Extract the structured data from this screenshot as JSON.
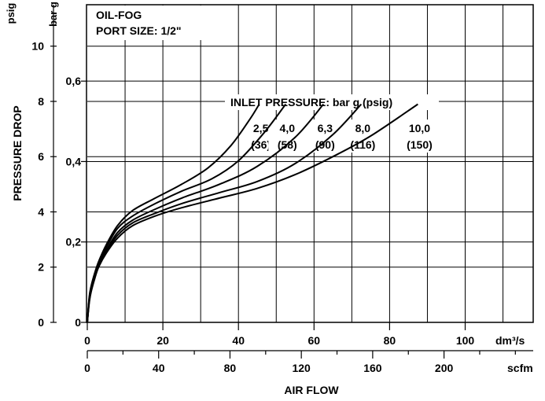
{
  "chart_data": {
    "type": "line",
    "title_lines": [
      "OIL-FOG",
      "PORT SIZE: 1/2\""
    ],
    "ylabel": "PRESSURE DROP",
    "xlabel": "AIR FLOW",
    "y_axes": [
      {
        "unit": "psig",
        "ticks": [
          "0",
          "2",
          "4",
          "6",
          "8",
          "10"
        ],
        "range": [
          0,
          11.5
        ]
      },
      {
        "unit": "bar g",
        "ticks": [
          "0",
          "0,2",
          "0,4",
          "0,6"
        ],
        "range": [
          0,
          0.79
        ]
      }
    ],
    "x_axes": [
      {
        "unit": "dm³/s",
        "ticks": [
          "0",
          "20",
          "40",
          "60",
          "80",
          "100"
        ],
        "range": [
          0,
          118
        ]
      },
      {
        "unit": "scfm",
        "ticks": [
          "0",
          "40",
          "80",
          "120",
          "160",
          "200"
        ],
        "range": [
          0,
          250
        ]
      }
    ],
    "legend_title": "INLET PRESSURE: bar g (psig)",
    "grid": true,
    "series": [
      {
        "name": "2,5 (36)",
        "label_top": "2,5",
        "label_bottom": "(36)",
        "x": [
          0,
          0.5,
          1,
          2,
          3,
          5,
          8,
          12,
          18,
          25,
          32,
          38,
          43,
          45.5
        ],
        "y": [
          0,
          0.9,
          1.3,
          1.8,
          2.2,
          2.8,
          3.5,
          4.05,
          4.5,
          5.0,
          5.6,
          6.4,
          7.35,
          7.9
        ]
      },
      {
        "name": "4,0 (58)",
        "label_top": "4,0",
        "label_bottom": "(58)",
        "x": [
          0,
          0.5,
          1,
          2,
          3,
          5,
          8,
          12,
          18,
          25,
          33,
          40,
          47,
          52.5
        ],
        "y": [
          0,
          0.85,
          1.25,
          1.75,
          2.15,
          2.7,
          3.4,
          3.85,
          4.3,
          4.75,
          5.2,
          5.85,
          6.9,
          7.9
        ]
      },
      {
        "name": "6,3 (90)",
        "label_top": "6,3",
        "label_bottom": "(90)",
        "x": [
          0,
          0.5,
          1,
          2,
          3,
          5,
          8,
          12,
          18,
          25,
          35,
          45,
          55,
          62.5
        ],
        "y": [
          0,
          0.8,
          1.2,
          1.7,
          2.1,
          2.6,
          3.25,
          3.7,
          4.1,
          4.5,
          5.0,
          5.65,
          6.7,
          7.9
        ]
      },
      {
        "name": "8,0 (116)",
        "label_top": "8,0",
        "label_bottom": "(116)",
        "x": [
          0,
          0.5,
          1,
          2,
          3,
          5,
          8,
          12,
          18,
          25,
          35,
          45,
          55,
          65,
          72.5
        ],
        "y": [
          0,
          0.75,
          1.15,
          1.65,
          2.05,
          2.55,
          3.15,
          3.6,
          3.95,
          4.3,
          4.7,
          5.1,
          5.75,
          6.8,
          7.9
        ]
      },
      {
        "name": "10,0 (150)",
        "label_top": "10,0",
        "label_bottom": "(150)",
        "x": [
          0,
          0.5,
          1,
          2,
          3,
          5,
          8,
          12,
          18,
          25,
          35,
          45,
          55,
          65,
          75,
          87.5
        ],
        "y": [
          0,
          0.7,
          1.1,
          1.6,
          2.0,
          2.5,
          3.05,
          3.5,
          3.85,
          4.15,
          4.5,
          4.85,
          5.35,
          6.0,
          6.75,
          7.9
        ]
      }
    ]
  }
}
